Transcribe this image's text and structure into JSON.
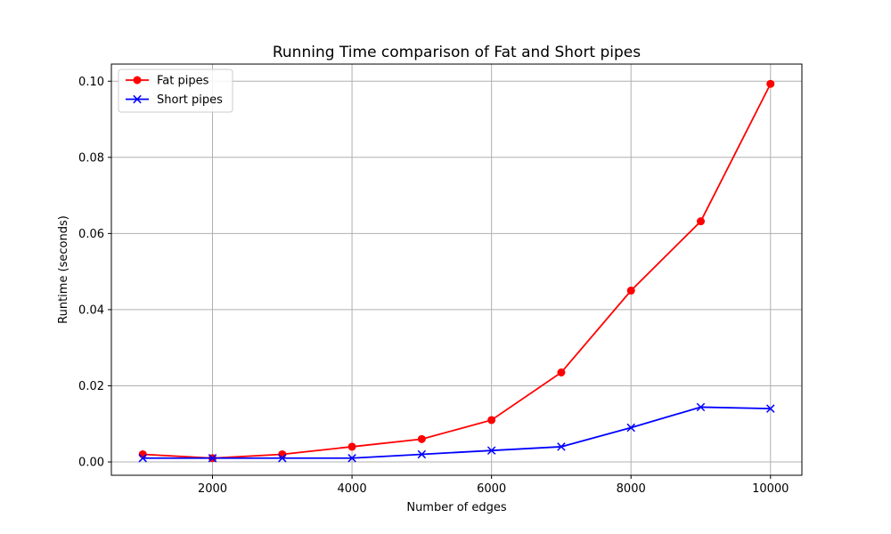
{
  "chart_data": {
    "type": "line",
    "title": "Running Time comparison of Fat and Short pipes",
    "xlabel": "Number of edges",
    "ylabel": "Runtime (seconds)",
    "x": [
      1000,
      2000,
      3000,
      4000,
      5000,
      6000,
      7000,
      8000,
      9000,
      10000
    ],
    "xlim": [
      550,
      10450
    ],
    "ylim": [
      -0.0035,
      0.1045
    ],
    "xticks": [
      2000,
      4000,
      6000,
      8000,
      10000
    ],
    "xtick_labels": [
      "2000",
      "4000",
      "6000",
      "8000",
      "10000"
    ],
    "yticks": [
      0.0,
      0.02,
      0.04,
      0.06,
      0.08,
      0.1
    ],
    "ytick_labels": [
      "0.00",
      "0.02",
      "0.04",
      "0.06",
      "0.08",
      "0.10"
    ],
    "grid": true,
    "legend_position": "top-left",
    "series": [
      {
        "name": "Fat pipes",
        "color": "#ff0000",
        "marker": "circle",
        "values": [
          0.002,
          0.001,
          0.002,
          0.004,
          0.006,
          0.011,
          0.0235,
          0.045,
          0.0632,
          0.0993
        ]
      },
      {
        "name": "Short pipes",
        "color": "#0000ff",
        "marker": "x",
        "values": [
          0.001,
          0.001,
          0.001,
          0.001,
          0.002,
          0.003,
          0.004,
          0.009,
          0.0144,
          0.014
        ]
      }
    ]
  }
}
